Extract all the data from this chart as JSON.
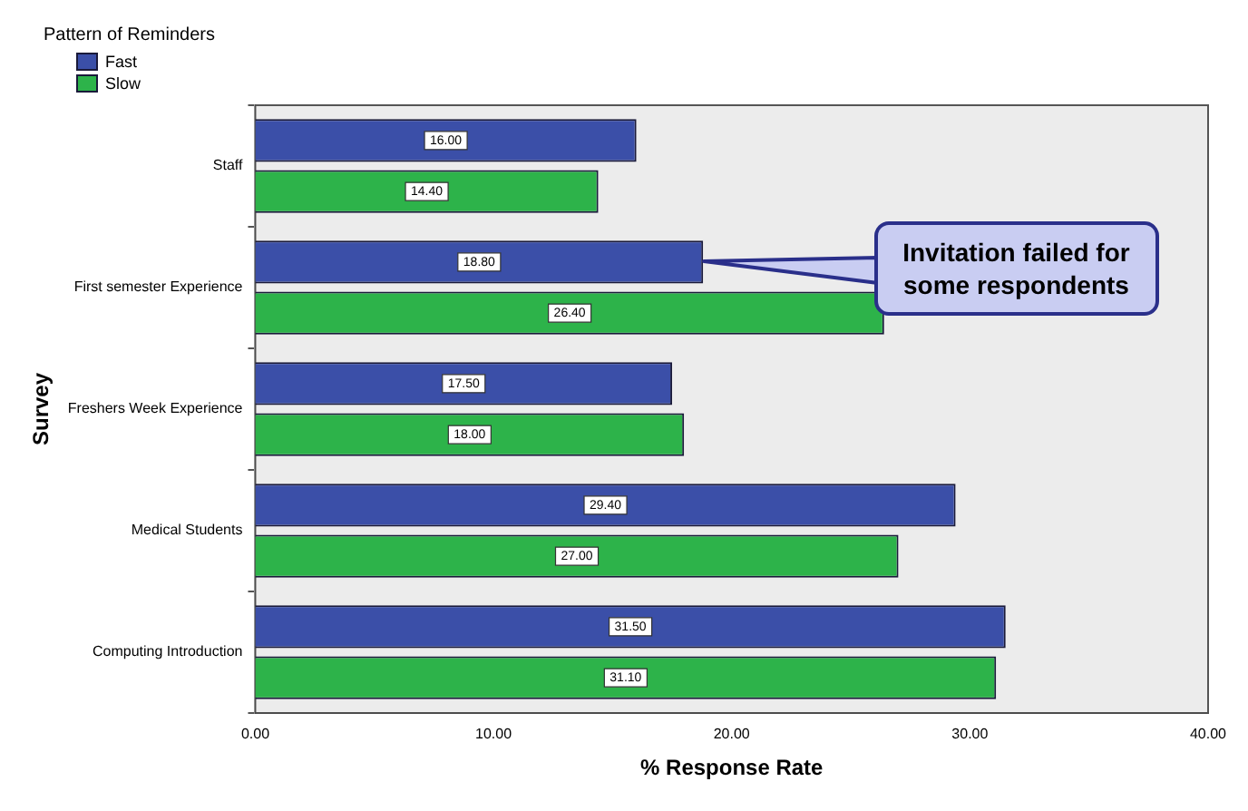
{
  "chart_data": {
    "type": "bar",
    "orientation": "horizontal",
    "xlabel": "% Response Rate",
    "ylabel": "Survey",
    "legend_title": "Pattern of Reminders",
    "legend": "top left",
    "categories": [
      "Staff",
      "First semester Experience",
      "Freshers Week Experience",
      "Medical Students",
      "Computing Introduction"
    ],
    "series": [
      {
        "name": "Fast",
        "color": "#3b4fa8",
        "values": [
          16.0,
          18.8,
          17.5,
          29.4,
          31.5
        ],
        "value_labels": [
          "16.00",
          "18.80",
          "17.50",
          "29.40",
          "31.50"
        ]
      },
      {
        "name": "Slow",
        "color": "#2db34a",
        "values": [
          14.4,
          26.4,
          18.0,
          27.0,
          31.1
        ],
        "value_labels": [
          "14.40",
          "26.40",
          "18.00",
          "27.00",
          "31.10"
        ]
      }
    ],
    "xlim": [
      0,
      40
    ],
    "xticks": [
      {
        "value": 0,
        "label": "0.00"
      },
      {
        "value": 10,
        "label": "10.00"
      },
      {
        "value": 20,
        "label": "20.00"
      },
      {
        "value": 30,
        "label": "30.00"
      },
      {
        "value": 40,
        "label": "40.00"
      }
    ],
    "grid": false,
    "annotations": [
      "Invitation failed for\nsome respondents"
    ]
  }
}
